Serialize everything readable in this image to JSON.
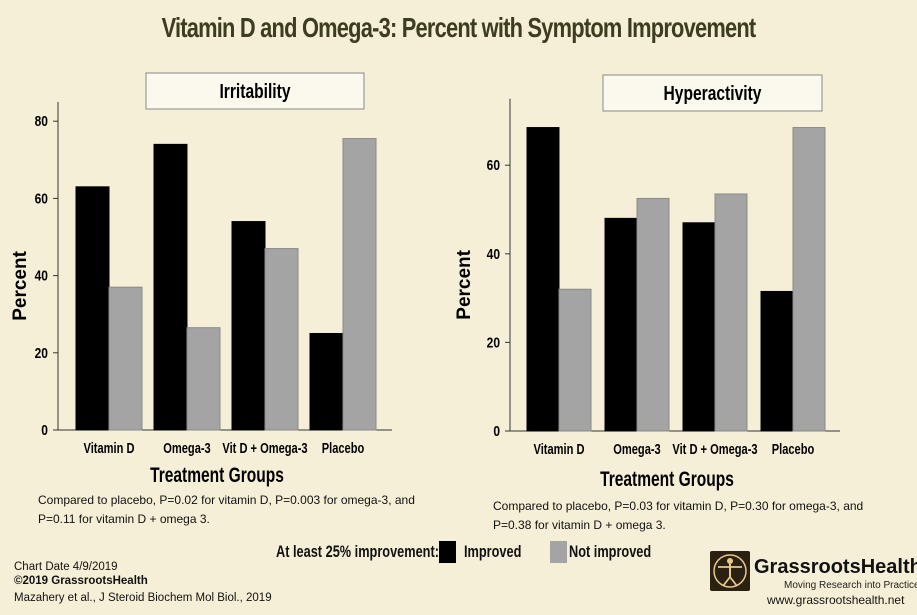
{
  "title": "Vitamin D and Omega-3: Percent with Symptom Improvement",
  "chart_data": [
    {
      "type": "bar",
      "title": "Irritability",
      "categories": [
        "Vitamin D",
        "Omega-3",
        "Vit D + Omega-3",
        "Placebo"
      ],
      "series": [
        {
          "name": "Improved",
          "values": [
            63,
            74,
            54,
            25
          ]
        },
        {
          "name": "Not improved",
          "values": [
            37,
            26.5,
            47,
            75.5
          ]
        }
      ],
      "xlabel": "Treatment Groups",
      "ylabel": "Percent",
      "ylim": [
        0,
        85
      ],
      "yticks": [
        0,
        20,
        40,
        60,
        80
      ],
      "note": "Compared to placebo, P=0.02 for vitamin D, P=0.003 for omega-3, and P=0.11 for vitamin D + omega 3."
    },
    {
      "type": "bar",
      "title": "Hyperactivity",
      "categories": [
        "Vitamin D",
        "Omega-3",
        "Vit D + Omega-3",
        "Placebo"
      ],
      "series": [
        {
          "name": "Improved",
          "values": [
            68.5,
            48,
            47,
            31.5
          ]
        },
        {
          "name": "Not improved",
          "values": [
            32,
            52.5,
            53.5,
            68.5
          ]
        }
      ],
      "xlabel": "Treatment Groups",
      "ylabel": "Percent",
      "ylim": [
        0,
        75
      ],
      "yticks": [
        0,
        20,
        40,
        60
      ],
      "note": "Compared to placebo, P=0.03 for vitamin D, P=0.30 for omega-3, and P=0.38 for vitamin D + omega 3."
    }
  ],
  "legend": {
    "label": "At least 25% improvement:",
    "items": [
      {
        "name": "Improved",
        "color": "#000000"
      },
      {
        "name": "Not improved",
        "color": "#a4a4a4"
      }
    ]
  },
  "footer": {
    "date": "Chart Date 4/9/2019",
    "copyright": "©2019 GrassrootsHealth",
    "citation": "Mazahery et al., J Steroid Biochem Mol Biol., 2019"
  },
  "logo": {
    "name": "GrassrootsHealth",
    "tagline": "Moving Research into Practice",
    "url": "www.grassrootshealth.net"
  }
}
